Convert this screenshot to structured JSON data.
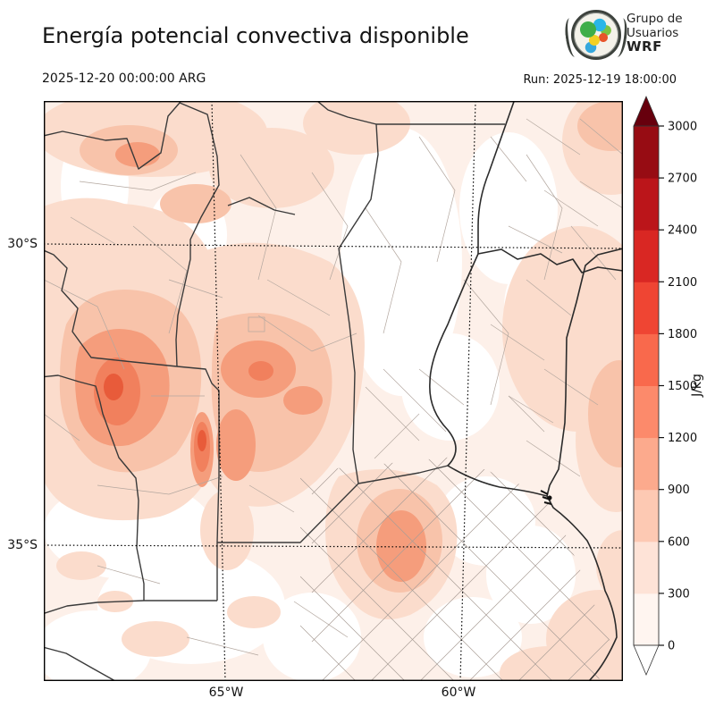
{
  "header": {
    "title": "Energía potencial convectiva disponible",
    "valid_time": "2025-12-20 00:00:00 ARG",
    "run_label": "Run: 2025-12-19 18:00:00",
    "logo": {
      "line1": "Grupo de",
      "line2": "Usuarios",
      "line3": "WRF"
    }
  },
  "map": {
    "lat_labels": [
      "30°S",
      "35°S"
    ],
    "lon_labels": [
      "65°W",
      "60°W"
    ]
  },
  "colorbar": {
    "unit": "J/kg",
    "min": 0,
    "max": 3000,
    "tick_step": 300,
    "ticks": [
      0,
      300,
      600,
      900,
      1200,
      1500,
      1800,
      2100,
      2400,
      2700,
      3000
    ],
    "segment_colors": [
      "#fff5f0",
      "#fee3d7",
      "#fdc9b3",
      "#fcaa8d",
      "#fc8a6b",
      "#f9694c",
      "#ef4533",
      "#d92723",
      "#bb151a",
      "#970c13"
    ],
    "over_color": "#67000d",
    "under_color": "#ffffff"
  },
  "chart_data": {
    "type": "heatmap",
    "title": "Energía potencial convectiva disponible",
    "variable": "CAPE (convective available potential energy)",
    "units": "J/kg",
    "valid_time": "2025-12-20 00:00:00 ARG",
    "model_run": "Run: 2025-12-19 18:00:00",
    "colormap": "Reds, discrete",
    "levels": [
      0,
      300,
      600,
      900,
      1200,
      1500,
      1800,
      2100,
      2400,
      2700,
      3000
    ],
    "colorbar_extend": "both",
    "map_extent": {
      "lon_west": "≈69°W",
      "lon_east": "≈56.5°W",
      "lat_north": "≈27.5°S",
      "lat_south": "≈37.3°S"
    },
    "gridlines": {
      "lat": [
        "30°S",
        "35°S"
      ],
      "lon": [
        "65°W",
        "60°W"
      ],
      "style": "dotted"
    },
    "field_maxima_read_from_colorbar": [
      {
        "area": "northwest blob (≈67.5°W, 32.5°S)",
        "cape_jkg": "900–1500"
      },
      {
        "area": "west-central streak (≈65.2°W, 33.5°S)",
        "cape_jkg": "900–1500"
      },
      {
        "area": "central hills (≈64.5°W, 31.5°S)",
        "cape_jkg": "600–1200"
      },
      {
        "area": "bottom-center patch (≈61.5°W, 35°S)",
        "cape_jkg": "600–900"
      },
      {
        "area": "eastern band (≈58°W, 30–33°S)",
        "cape_jkg": "300–600"
      },
      {
        "area": "white areas (center column, SE, SW)",
        "cape_jkg": "0–300"
      }
    ]
  }
}
